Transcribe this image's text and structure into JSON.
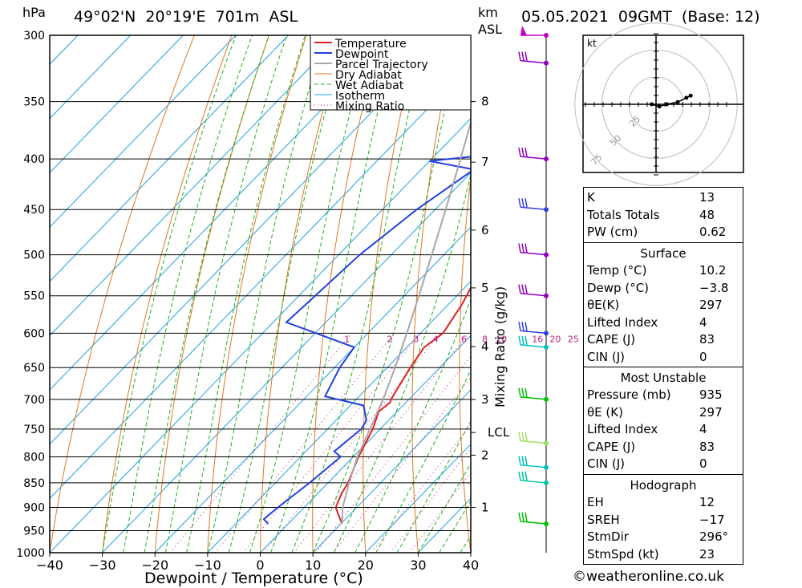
{
  "header": {
    "pressure_unit": "hPa",
    "location": "49°02'N  20°19'E  701m  ASL",
    "km_unit": "km",
    "asl_label": "ASL",
    "datetime": "05.05.2021  09GMT  (Base: 12)"
  },
  "chart_data": {
    "type": "skew-t",
    "xlabel": "Dewpoint / Temperature (°C)",
    "mixing_ratio_axis_label": "Mixing Ratio (g/kg)",
    "temperature_ticks": [
      -40,
      -30,
      -20,
      -10,
      0,
      10,
      20,
      30,
      40
    ],
    "temperature_range": [
      -40,
      40
    ],
    "pressure_levels": [
      300,
      350,
      400,
      450,
      500,
      550,
      600,
      650,
      700,
      750,
      800,
      850,
      900,
      950,
      1000
    ],
    "pressure_range": [
      300,
      1000
    ],
    "height_ticks_km": [
      {
        "label": "8",
        "p": 350
      },
      {
        "label": "7",
        "p": 403
      },
      {
        "label": "6",
        "p": 472
      },
      {
        "label": "5",
        "p": 540
      },
      {
        "label": "4",
        "p": 619
      },
      {
        "label": "3",
        "p": 700
      },
      {
        "label": "LCL",
        "p": 756
      },
      {
        "label": "2",
        "p": 797
      },
      {
        "label": "1",
        "p": 900
      }
    ],
    "mixing_ratio_labels": [
      "1",
      "2",
      "3",
      "4",
      "6",
      "8",
      "10",
      "16",
      "20",
      "25"
    ],
    "mixing_ratio_values": [
      1,
      2,
      3,
      4,
      6,
      8,
      10,
      16,
      20,
      25
    ],
    "legend": [
      "Temperature",
      "Dewpoint",
      "Parcel Trajectory",
      "Dry Adiabat",
      "Wet Adiabat",
      "Isotherm",
      "Mixing Ratio"
    ],
    "legend_position": "top-right",
    "series": [
      {
        "name": "Temperature",
        "color": "#e02020",
        "points": [
          [
            935,
            10.2
          ],
          [
            900,
            6.0
          ],
          [
            870,
            4.5
          ],
          [
            850,
            3.8
          ],
          [
            800,
            1.0
          ],
          [
            750,
            -1.4
          ],
          [
            720,
            -3.5
          ],
          [
            705,
            -3.0
          ],
          [
            700,
            -3.4
          ],
          [
            650,
            -5.6
          ],
          [
            620,
            -6.7
          ],
          [
            600,
            -5.7
          ],
          [
            560,
            -7.5
          ],
          [
            500,
            -11.5
          ],
          [
            450,
            -16.8
          ],
          [
            400,
            -20.8
          ],
          [
            350,
            -27.5
          ],
          [
            300,
            -33.5
          ]
        ]
      },
      {
        "name": "Dewpoint",
        "color": "#2040e0",
        "points": [
          [
            935,
            -3.8
          ],
          [
            925,
            -5.5
          ],
          [
            900,
            -5.0
          ],
          [
            850,
            -3.5
          ],
          [
            800,
            -2.4
          ],
          [
            790,
            -4.6
          ],
          [
            750,
            -3.6
          ],
          [
            735,
            -4.2
          ],
          [
            710,
            -7.5
          ],
          [
            695,
            -16.5
          ],
          [
            650,
            -19.0
          ],
          [
            620,
            -20.0
          ],
          [
            585,
            -37.5
          ],
          [
            500,
            -36.0
          ],
          [
            450,
            -33.5
          ],
          [
            410,
            -30.0
          ],
          [
            402,
            -40.0
          ],
          [
            398,
            -33.0
          ],
          [
            350,
            -34.5
          ],
          [
            310,
            -36.5
          ],
          [
            300,
            -34.0
          ]
        ]
      },
      {
        "name": "Parcel Trajectory",
        "color": "#a8a8a8",
        "points": [
          [
            935,
            10.2
          ],
          [
            900,
            7.3
          ],
          [
            850,
            4.0
          ],
          [
            800,
            0.8
          ],
          [
            756,
            -1.6
          ],
          [
            700,
            -4.9
          ],
          [
            650,
            -8.5
          ],
          [
            600,
            -12.6
          ],
          [
            550,
            -17.2
          ],
          [
            500,
            -22.3
          ],
          [
            450,
            -28.0
          ],
          [
            400,
            -34.5
          ],
          [
            350,
            -42.0
          ],
          [
            300,
            -50.5
          ]
        ]
      }
    ],
    "wind_barbs": [
      {
        "p": 300,
        "color": "#c000c0",
        "type": "pennant"
      },
      {
        "p": 320,
        "color": "#9000c0",
        "type": "barbs"
      },
      {
        "p": 400,
        "color": "#9000c0",
        "type": "barbs"
      },
      {
        "p": 450,
        "color": "#3040e0",
        "type": "barbs"
      },
      {
        "p": 500,
        "color": "#9000c0",
        "type": "barbs"
      },
      {
        "p": 550,
        "color": "#9000c0",
        "type": "barbs"
      },
      {
        "p": 600,
        "color": "#3040e0",
        "type": "barbs"
      },
      {
        "p": 620,
        "color": "#00c0c0",
        "type": "barbs"
      },
      {
        "p": 700,
        "color": "#00c000",
        "type": "barbs"
      },
      {
        "p": 775,
        "color": "#a0e060",
        "type": "barbs"
      },
      {
        "p": 820,
        "color": "#00c0c0",
        "type": "barbs"
      },
      {
        "p": 850,
        "color": "#00c0a0",
        "type": "barbs"
      },
      {
        "p": 935,
        "color": "#00c000",
        "type": "barbs"
      }
    ],
    "hodograph": {
      "unit_label": "kt",
      "ring_labels": [
        "25",
        "50",
        "75"
      ],
      "points": [
        [
          -4,
          0
        ],
        [
          3,
          -2
        ],
        [
          10,
          0
        ],
        [
          20,
          2
        ],
        [
          28,
          6
        ],
        [
          32,
          8
        ]
      ]
    }
  },
  "indices": {
    "rows": [
      {
        "k": "K",
        "v": "13"
      },
      {
        "k": "Totals Totals",
        "v": "48"
      },
      {
        "k": "PW (cm)",
        "v": "0.62"
      }
    ]
  },
  "surface": {
    "title": "Surface",
    "rows": [
      {
        "k": "Temp (°C)",
        "v": "10.2"
      },
      {
        "k": "Dewp (°C)",
        "v": "−3.8"
      },
      {
        "k": "θE(K)",
        "v": "297"
      },
      {
        "k": "Lifted Index",
        "v": "4"
      },
      {
        "k": "CAPE (J)",
        "v": "83"
      },
      {
        "k": "CIN (J)",
        "v": "0"
      }
    ]
  },
  "most_unstable": {
    "title": "Most Unstable",
    "rows": [
      {
        "k": "Pressure (mb)",
        "v": "935"
      },
      {
        "k": "θE (K)",
        "v": "297"
      },
      {
        "k": "Lifted Index",
        "v": "4"
      },
      {
        "k": "CAPE (J)",
        "v": "83"
      },
      {
        "k": "CIN (J)",
        "v": "0"
      }
    ]
  },
  "hodograph_stats": {
    "title": "Hodograph",
    "rows": [
      {
        "k": "EH",
        "v": "12"
      },
      {
        "k": "SREH",
        "v": "−17"
      },
      {
        "k": "StmDir",
        "v": "296°"
      },
      {
        "k": "StmSpd (kt)",
        "v": "23"
      }
    ]
  },
  "footer": {
    "copyright": "©weatheronline.co.uk"
  },
  "colors": {
    "temperature": "#e02020",
    "dewpoint": "#2040e0",
    "parcel": "#a8a8a8",
    "dry_adiabat": "#e07820",
    "wet_adiabat": "#20b020",
    "isotherm": "#20a0e0",
    "mixing_ratio": "#c02080"
  }
}
